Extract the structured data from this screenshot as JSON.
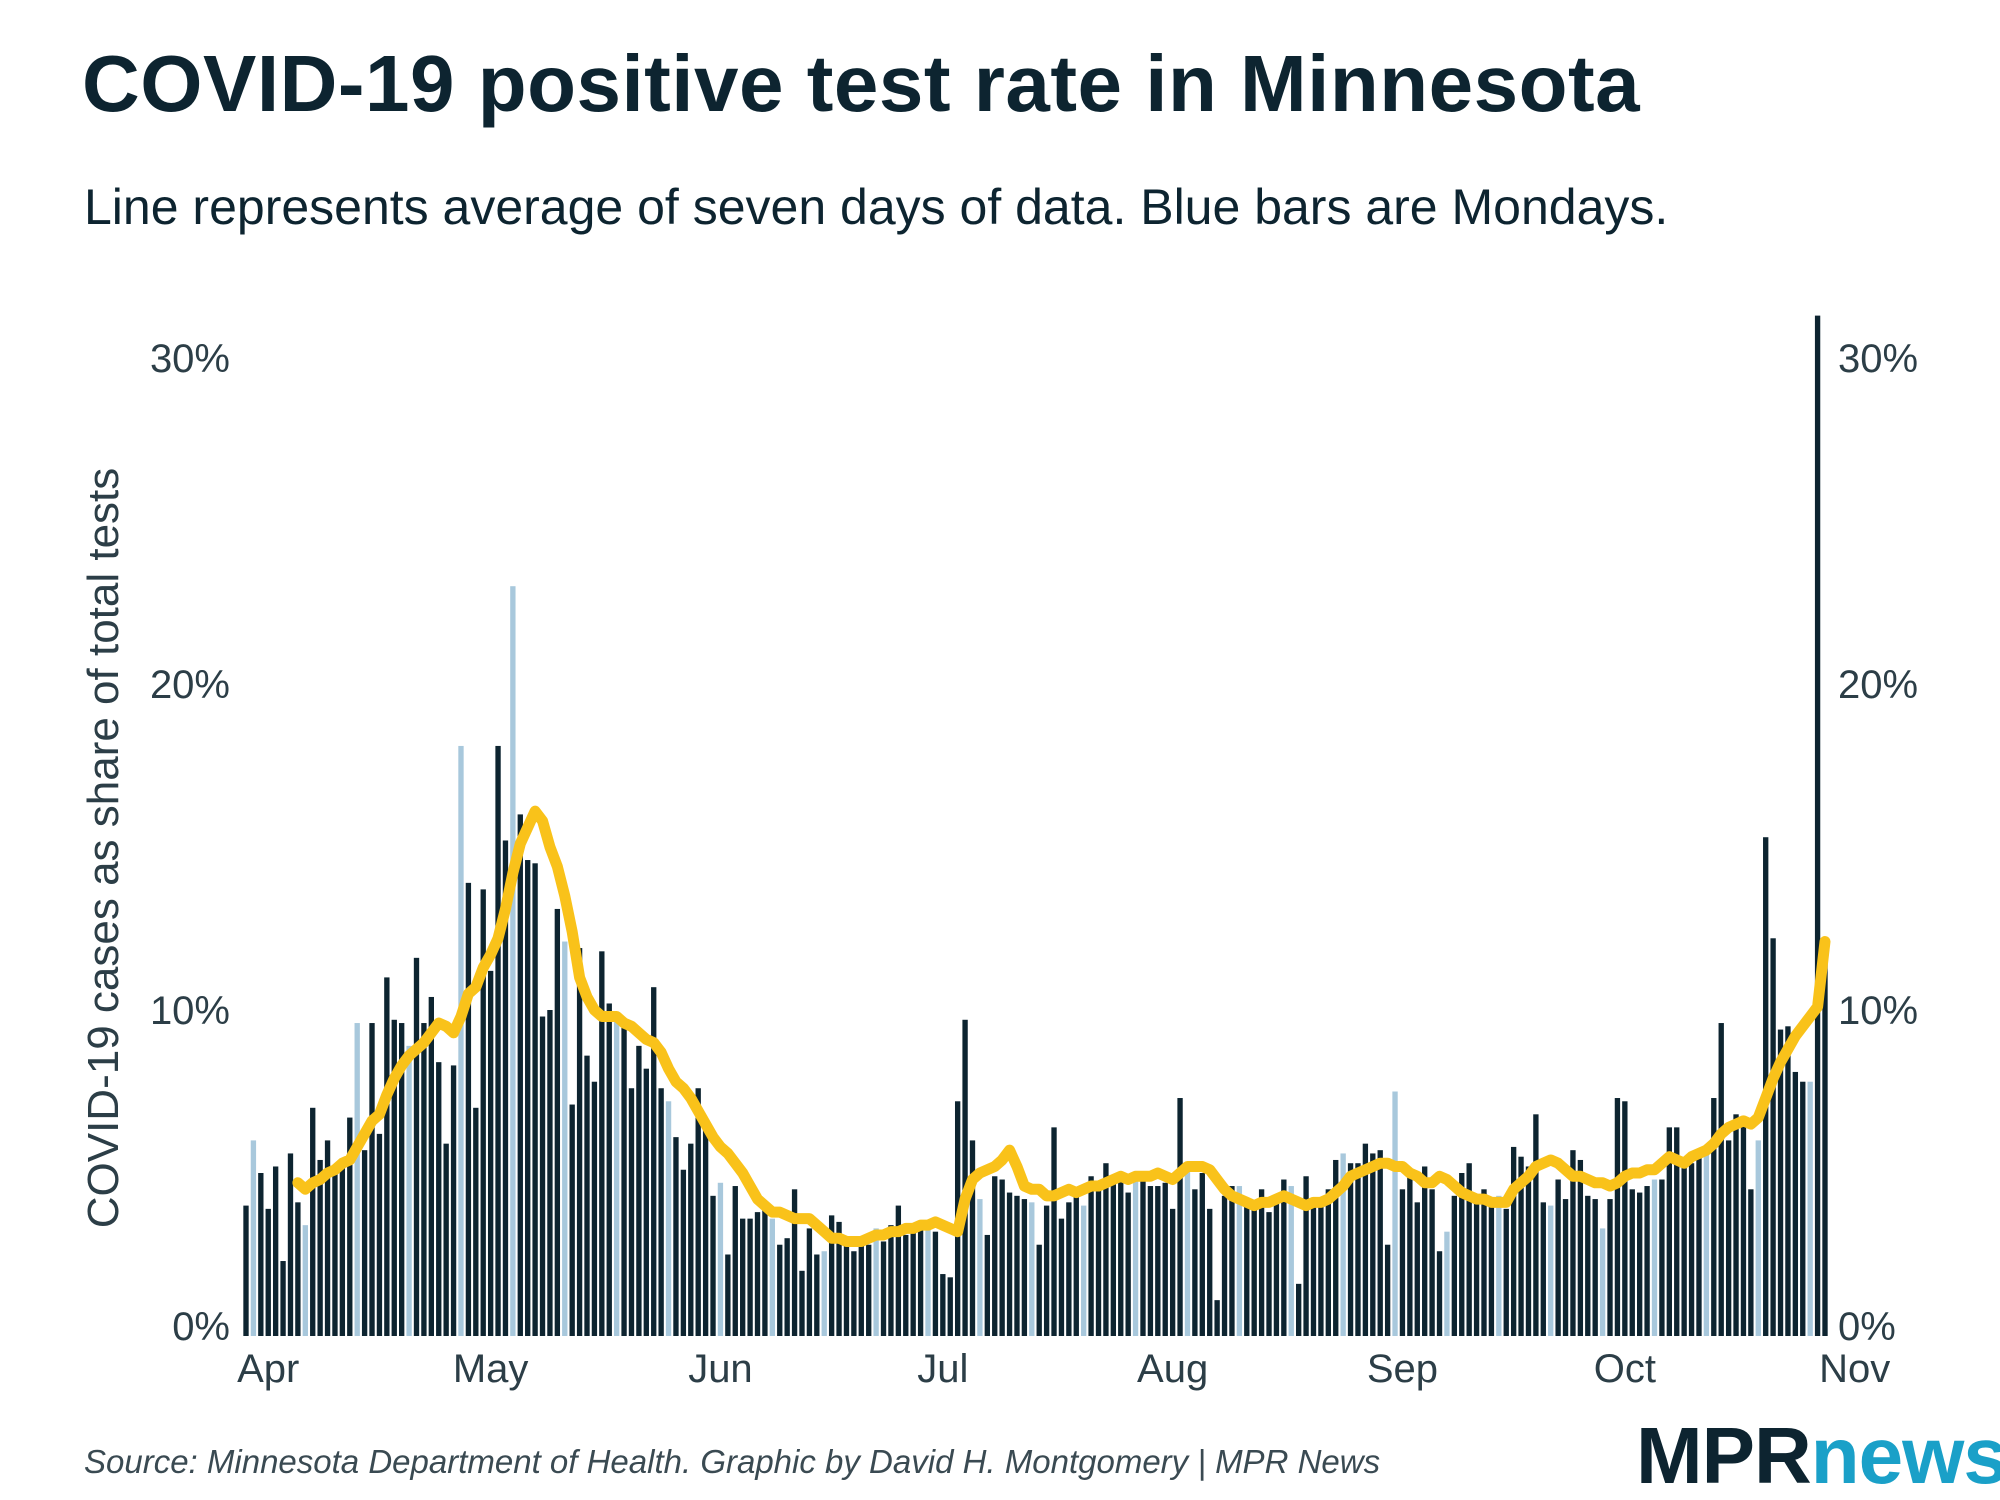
{
  "title": "COVID-19 positive test rate in Minnesota",
  "subtitle": "Line represents average of seven days of data. Blue bars are Mondays.",
  "source": "Source: Minnesota Department of Health. Graphic by David H. Montgomery | MPR News",
  "logo": {
    "part1": "MPR",
    "part2": "news"
  },
  "colors": {
    "bar": "#0d2430",
    "monday_bar": "#a8c8dc",
    "line": "#f9c21a",
    "text": "#0d2430"
  },
  "chart_data": {
    "type": "bar",
    "title": "COVID-19 positive test rate in Minnesota",
    "subtitle": "Line represents average of seven days of data. Blue bars are Mondays.",
    "ylabel": "COVID-19 cases as share of total tests",
    "y_unit": "%",
    "ylim": [
      0,
      30
    ],
    "y_ticks": [
      0,
      10,
      20,
      30
    ],
    "y_tick_labels": [
      "0%",
      "10%",
      "20%",
      "30%"
    ],
    "y_axis_right": true,
    "x_tick_labels": [
      "Apr",
      "May",
      "Jun",
      "Jul",
      "Aug",
      "Sep",
      "Oct",
      "Nov"
    ],
    "x_tick_dates": [
      "2020-04-01",
      "2020-05-01",
      "2020-06-01",
      "2020-07-01",
      "2020-08-01",
      "2020-09-01",
      "2020-10-01",
      "2020-11-01"
    ],
    "x_start": "2020-03-29",
    "grid": false,
    "series": [
      {
        "name": "Daily positive rate",
        "kind": "bar",
        "highlight": "Mondays",
        "values": [
          4.0,
          6.0,
          5.0,
          3.9,
          5.2,
          2.3,
          5.6,
          4.1,
          3.4,
          7.0,
          5.4,
          6.0,
          5.0,
          5.4,
          6.7,
          9.6,
          5.7,
          9.6,
          6.2,
          11.0,
          9.7,
          9.6,
          8.9,
          11.6,
          9.6,
          10.4,
          8.4,
          5.9,
          8.3,
          18.1,
          13.9,
          7.0,
          13.7,
          11.2,
          18.1,
          15.2,
          23.0,
          16.0,
          14.6,
          14.5,
          9.8,
          10.0,
          13.1,
          12.1,
          7.1,
          11.9,
          8.6,
          7.8,
          11.8,
          10.2,
          9.8,
          9.5,
          7.6,
          8.9,
          8.2,
          10.7,
          7.6,
          7.2,
          6.1,
          5.1,
          5.9,
          7.6,
          6.5,
          4.3,
          4.7,
          2.5,
          4.6,
          3.6,
          3.6,
          3.8,
          4.1,
          3.6,
          2.8,
          3.0,
          4.5,
          2.0,
          3.3,
          2.5,
          2.6,
          3.7,
          3.5,
          3.0,
          2.6,
          2.9,
          2.8,
          3.3,
          2.9,
          3.4,
          4.0,
          3.1,
          3.4,
          3.3,
          3.3,
          3.2,
          1.9,
          1.8,
          7.2,
          9.7,
          6.0,
          4.2,
          3.1,
          4.9,
          4.8,
          4.4,
          4.3,
          4.2,
          4.1,
          2.8,
          4.0,
          6.4,
          3.6,
          4.1,
          4.5,
          4.0,
          4.9,
          4.6,
          5.3,
          4.9,
          5.0,
          4.4,
          5.0,
          4.9,
          4.6,
          4.6,
          4.7,
          3.9,
          7.3,
          5.2,
          4.5,
          5.0,
          3.9,
          1.1,
          4.3,
          4.6,
          4.6,
          4.1,
          3.9,
          4.5,
          3.8,
          4.1,
          4.8,
          4.6,
          1.6,
          4.9,
          4.2,
          4.0,
          4.5,
          5.4,
          5.6,
          5.3,
          5.3,
          5.9,
          5.6,
          5.7,
          2.8,
          7.5,
          4.5,
          4.9,
          4.1,
          5.2,
          4.5,
          2.6,
          3.2,
          4.3,
          5.0,
          5.3,
          4.1,
          4.5,
          4.2,
          4.3,
          3.9,
          5.8,
          5.5,
          5.2,
          6.8,
          4.1,
          4.0,
          4.8,
          4.2,
          5.7,
          5.4,
          4.3,
          4.2,
          3.3,
          4.2,
          7.3,
          7.2,
          4.5,
          4.4,
          4.6,
          4.8,
          4.8,
          6.4,
          6.4,
          5.2,
          5.3,
          5.5,
          5.6,
          7.3,
          9.6,
          6.0,
          6.8,
          6.5,
          4.5,
          6.0,
          15.3,
          12.2,
          9.4,
          9.5,
          8.1,
          7.8,
          7.8,
          31.3,
          11.7
        ]
      },
      {
        "name": "Seven-day average",
        "kind": "line",
        "values": [
          null,
          null,
          null,
          null,
          null,
          null,
          null,
          4.7,
          4.5,
          4.7,
          4.8,
          5.0,
          5.1,
          5.3,
          5.4,
          5.8,
          6.2,
          6.6,
          6.8,
          7.4,
          7.9,
          8.3,
          8.6,
          8.8,
          9.0,
          9.3,
          9.6,
          9.5,
          9.3,
          9.8,
          10.5,
          10.7,
          11.3,
          11.7,
          12.2,
          13.1,
          14.2,
          15.1,
          15.6,
          16.1,
          15.8,
          15.0,
          14.4,
          13.5,
          12.4,
          11.0,
          10.4,
          10.0,
          9.8,
          9.8,
          9.8,
          9.6,
          9.5,
          9.3,
          9.1,
          9.0,
          8.7,
          8.2,
          7.8,
          7.6,
          7.3,
          6.9,
          6.5,
          6.1,
          5.8,
          5.6,
          5.3,
          5.0,
          4.6,
          4.2,
          4.0,
          3.8,
          3.8,
          3.7,
          3.6,
          3.6,
          3.6,
          3.4,
          3.2,
          3.0,
          3.0,
          2.9,
          2.9,
          2.9,
          3.0,
          3.1,
          3.1,
          3.2,
          3.2,
          3.3,
          3.3,
          3.4,
          3.4,
          3.5,
          3.4,
          3.3,
          3.2,
          4.2,
          4.8,
          5.0,
          5.1,
          5.2,
          5.4,
          5.7,
          5.2,
          4.6,
          4.5,
          4.5,
          4.3,
          4.3,
          4.4,
          4.5,
          4.4,
          4.5,
          4.6,
          4.6,
          4.7,
          4.8,
          4.9,
          4.8,
          4.9,
          4.9,
          4.9,
          5.0,
          4.9,
          4.8,
          5.0,
          5.2,
          5.2,
          5.2,
          5.1,
          4.8,
          4.5,
          4.3,
          4.2,
          4.1,
          4.0,
          4.1,
          4.1,
          4.2,
          4.3,
          4.2,
          4.1,
          4.0,
          4.1,
          4.1,
          4.2,
          4.4,
          4.6,
          4.9,
          5.0,
          5.1,
          5.2,
          5.3,
          5.3,
          5.2,
          5.2,
          5.0,
          4.9,
          4.7,
          4.7,
          4.9,
          4.8,
          4.6,
          4.4,
          4.3,
          4.2,
          4.2,
          4.1,
          4.1,
          4.1,
          4.5,
          4.7,
          4.9,
          5.2,
          5.3,
          5.4,
          5.3,
          5.1,
          4.9,
          4.9,
          4.8,
          4.7,
          4.7,
          4.6,
          4.7,
          4.9,
          5.0,
          5.0,
          5.1,
          5.1,
          5.3,
          5.5,
          5.4,
          5.3,
          5.5,
          5.6,
          5.7,
          5.9,
          6.2,
          6.4,
          6.5,
          6.6,
          6.5,
          6.7,
          7.3,
          7.9,
          8.4,
          8.8,
          9.2,
          9.5,
          9.8,
          10.1,
          12.1
        ]
      }
    ]
  }
}
